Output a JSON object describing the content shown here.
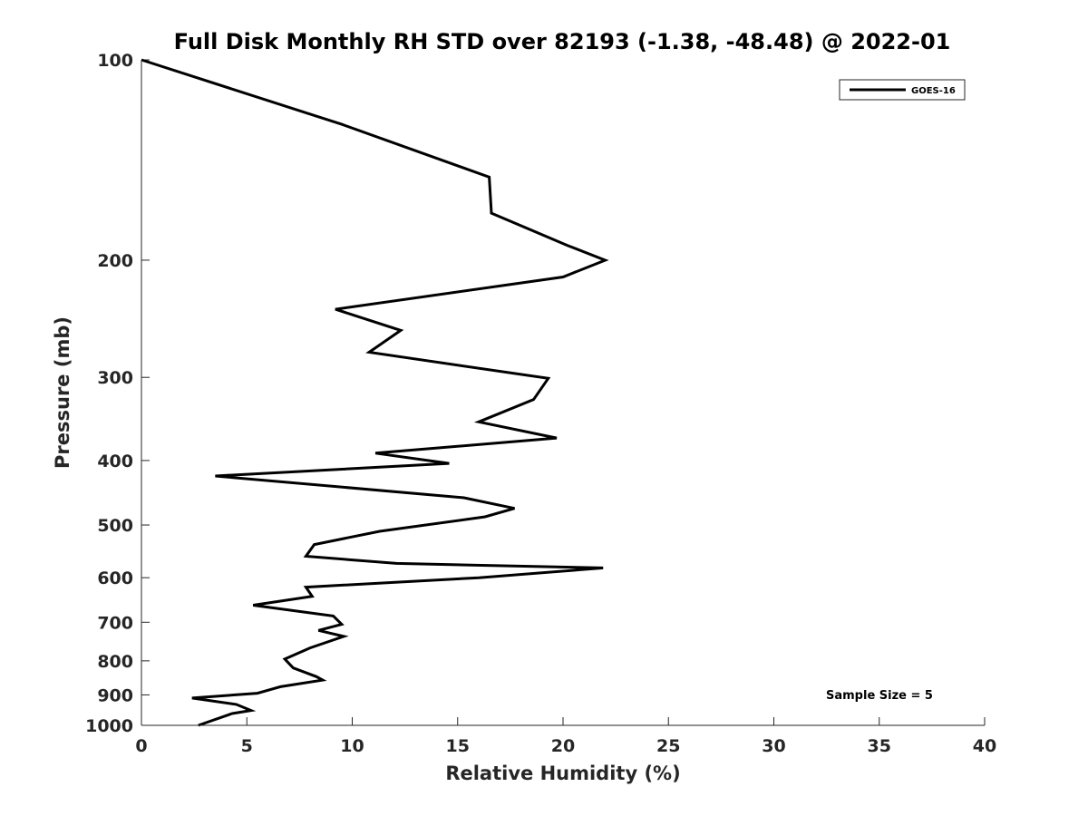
{
  "chart_data": {
    "type": "line",
    "title": "Full Disk Monthly RH STD over 82193 (-1.38, -48.48) @ 2022-01",
    "xlabel": "Relative Humidity (%)",
    "ylabel": "Pressure (mb)",
    "xlim": [
      0,
      40
    ],
    "ylim": [
      100,
      1000
    ],
    "y_scale": "log",
    "y_reversed": true,
    "x_ticks": [
      "0",
      "5",
      "10",
      "15",
      "20",
      "25",
      "30",
      "35",
      "40"
    ],
    "y_ticks": [
      "100",
      "200",
      "300",
      "400",
      "500",
      "600",
      "700",
      "800",
      "900",
      "1000"
    ],
    "grid": false,
    "legend_position": "top-right",
    "annotation": "Sample Size = 5",
    "series": [
      {
        "name": "GOES-16",
        "color": "#000000",
        "points": [
          [
            0.0,
            100
          ],
          [
            9.5,
            125
          ],
          [
            16.5,
            150
          ],
          [
            16.6,
            170
          ],
          [
            20.2,
            190
          ],
          [
            22.0,
            200
          ],
          [
            20.0,
            212
          ],
          [
            9.2,
            237
          ],
          [
            12.3,
            255
          ],
          [
            10.8,
            275
          ],
          [
            19.3,
            301
          ],
          [
            18.6,
            324
          ],
          [
            16.0,
            350
          ],
          [
            19.7,
            370
          ],
          [
            11.1,
            390
          ],
          [
            14.6,
            404
          ],
          [
            3.5,
            422
          ],
          [
            15.3,
            455
          ],
          [
            17.7,
            472
          ],
          [
            16.3,
            486
          ],
          [
            11.3,
            511
          ],
          [
            8.2,
            535
          ],
          [
            7.8,
            557
          ],
          [
            12.1,
            571
          ],
          [
            21.9,
            580
          ],
          [
            16.0,
            600
          ],
          [
            7.8,
            620
          ],
          [
            8.1,
            640
          ],
          [
            5.3,
            660
          ],
          [
            9.1,
            685
          ],
          [
            9.5,
            705
          ],
          [
            8.4,
            720
          ],
          [
            9.6,
            735
          ],
          [
            8.0,
            765
          ],
          [
            6.8,
            795
          ],
          [
            7.2,
            820
          ],
          [
            8.3,
            845
          ],
          [
            8.6,
            855
          ],
          [
            6.6,
            875
          ],
          [
            5.5,
            895
          ],
          [
            2.4,
            910
          ],
          [
            4.5,
            930
          ],
          [
            5.2,
            950
          ],
          [
            4.3,
            960
          ],
          [
            2.7,
            1000
          ]
        ]
      }
    ]
  }
}
